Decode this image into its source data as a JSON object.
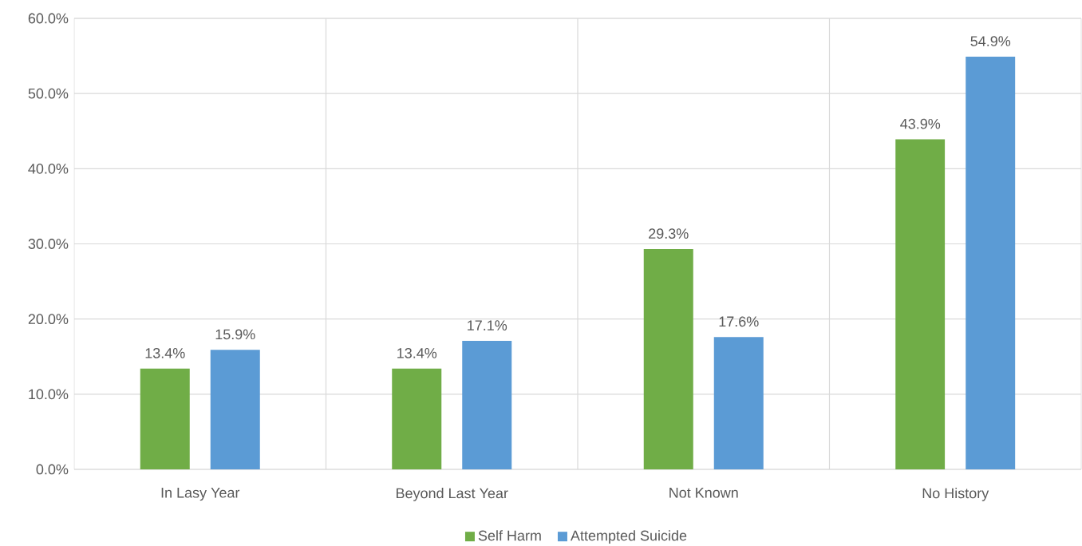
{
  "chart_data": {
    "type": "bar",
    "categories": [
      "In Lasy Year",
      "Beyond Last Year",
      "Not Known",
      "No History"
    ],
    "series": [
      {
        "name": "Self Harm",
        "color": "#70ad47",
        "values": [
          13.4,
          13.4,
          29.3,
          43.9
        ],
        "value_labels": [
          "13.4%",
          "13.4%",
          "29.3%",
          "43.9%"
        ]
      },
      {
        "name": "Attempted Suicide",
        "color": "#5b9bd5",
        "values": [
          15.9,
          17.1,
          17.6,
          54.9
        ],
        "value_labels": [
          "15.9%",
          "17.1%",
          "17.6%",
          "54.9%"
        ]
      }
    ],
    "ylim": [
      0,
      60
    ],
    "yticks": [
      {
        "value": 0,
        "label": "0.0%"
      },
      {
        "value": 10,
        "label": "10.0%"
      },
      {
        "value": 20,
        "label": "20.0%"
      },
      {
        "value": 30,
        "label": "30.0%"
      },
      {
        "value": 40,
        "label": "40.0%"
      },
      {
        "value": 50,
        "label": "50.0%"
      },
      {
        "value": 60,
        "label": "60.0%"
      }
    ],
    "grid": true,
    "legend": "bottom"
  }
}
